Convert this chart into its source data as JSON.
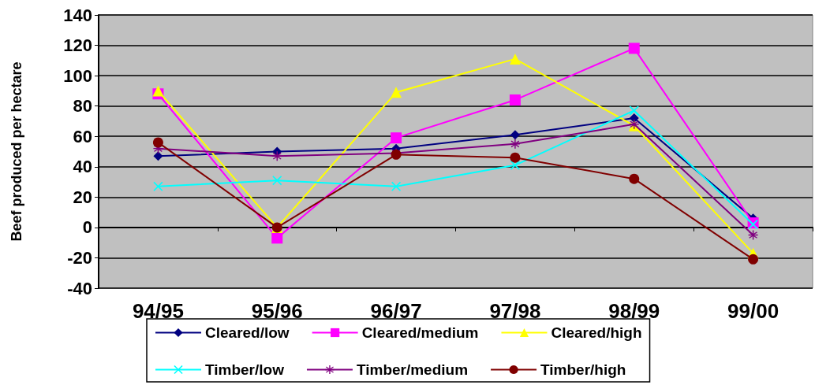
{
  "chart_data": {
    "type": "line",
    "ylabel": "Beef produced per hectare",
    "categories": [
      "94/95",
      "95/96",
      "96/97",
      "97/98",
      "98/99",
      "99/00"
    ],
    "series": [
      {
        "name": "Cleared/low",
        "color": "#000080",
        "marker": "diamond",
        "values": [
          47,
          50,
          52,
          61,
          72,
          6
        ]
      },
      {
        "name": "Cleared/medium",
        "color": "#ff00ff",
        "marker": "square",
        "values": [
          88,
          -7,
          59,
          84,
          118,
          3
        ]
      },
      {
        "name": "Cleared/high",
        "color": "#ffff00",
        "marker": "triangle",
        "values": [
          90,
          0,
          89,
          111,
          67,
          -17
        ]
      },
      {
        "name": "Timber/low",
        "color": "#00ffff",
        "marker": "cross",
        "values": [
          27,
          31,
          27,
          41,
          77,
          2
        ]
      },
      {
        "name": "Timber/medium",
        "color": "#800080",
        "marker": "star",
        "values": [
          52,
          47,
          49,
          55,
          68,
          -5
        ]
      },
      {
        "name": "Timber/high",
        "color": "#800000",
        "marker": "circle",
        "values": [
          56,
          0,
          48,
          46,
          32,
          -21
        ]
      }
    ],
    "ylim": [
      -40,
      140
    ],
    "yticks": [
      -40,
      -20,
      0,
      20,
      40,
      60,
      80,
      100,
      120,
      140
    ],
    "grid": "y",
    "legend": "bottom",
    "line_style": "solid"
  }
}
